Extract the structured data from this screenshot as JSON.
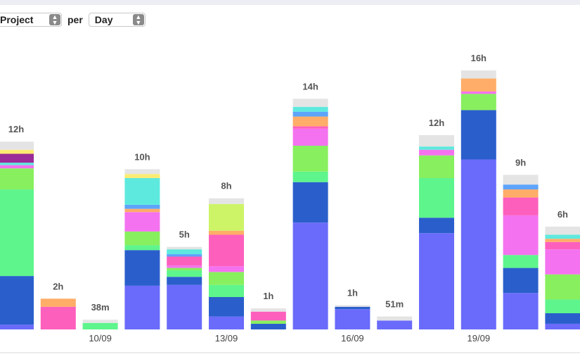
{
  "controls": {
    "group_by": "Project",
    "joiner": "per",
    "period": "Day"
  },
  "chart_data": {
    "type": "stacked-bar",
    "categories": [
      null,
      null,
      "10/09",
      null,
      null,
      "13/09",
      null,
      null,
      "16/09",
      null,
      null,
      "19/09",
      null,
      null
    ],
    "ylim": [
      0,
      20.35
    ],
    "series": [
      {
        "color": "#6a6bfb",
        "values": [
          0.3,
          null,
          null,
          2.7,
          2.75,
          0.8,
          null,
          6.6,
          1.25,
          0.55,
          5.95,
          10.5,
          2.25,
          0.35
        ]
      },
      {
        "color": "#2a5fcb",
        "values": [
          3.0,
          null,
          null,
          2.2,
          0.5,
          1.2,
          0.35,
          2.5,
          0.15,
          null,
          0.95,
          3.05,
          1.55,
          0.65
        ]
      },
      {
        "color": "#5ef58c",
        "values": [
          5.35,
          null,
          0.4,
          0.3,
          0.4,
          0.75,
          null,
          0.65,
          null,
          null,
          2.45,
          null,
          0.8,
          0.85
        ]
      },
      {
        "color": "#88ef5e",
        "values": [
          1.3,
          null,
          null,
          0.85,
          0.15,
          0.8,
          0.2,
          1.6,
          null,
          null,
          1.4,
          1.0,
          null,
          1.55
        ]
      },
      {
        "color": "#f472ef",
        "values": [
          0.2,
          null,
          null,
          1.2,
          0.15,
          0.35,
          null,
          1.05,
          null,
          null,
          0.35,
          0.15,
          2.45,
          1.55
        ]
      },
      {
        "color": "#fd5fbd",
        "values": [
          null,
          1.4,
          null,
          null,
          0.55,
          1.95,
          0.55,
          0.15,
          null,
          null,
          null,
          null,
          1.1,
          0.45
        ]
      },
      {
        "color": "#ffad68",
        "values": [
          null,
          0.5,
          null,
          0.2,
          null,
          0.25,
          null,
          0.6,
          null,
          null,
          null,
          0.8,
          0.5,
          0.2
        ]
      },
      {
        "color": "#5ea4fb",
        "values": [
          null,
          null,
          null,
          0.25,
          0.15,
          null,
          null,
          0.3,
          null,
          null,
          null,
          null,
          0.3,
          null
        ]
      },
      {
        "color": "#5ee9de",
        "values": [
          0.15,
          null,
          null,
          1.65,
          0.3,
          null,
          null,
          0.3,
          null,
          null,
          0.2,
          null,
          null,
          0.25
        ]
      },
      {
        "color": "#9b2b98",
        "values": [
          0.55,
          null,
          null,
          null,
          null,
          null,
          null,
          null,
          null,
          null,
          null,
          null,
          null,
          null
        ]
      },
      {
        "color": "#fbeb72",
        "values": [
          0.25,
          null,
          null,
          0.25,
          null,
          null,
          null,
          null,
          null,
          null,
          null,
          null,
          null,
          null
        ]
      },
      {
        "color": "#cdf466",
        "values": [
          null,
          null,
          null,
          null,
          null,
          1.65,
          null,
          null,
          null,
          null,
          null,
          null,
          null,
          null
        ]
      },
      {
        "color": "#e4e4e4",
        "values": [
          0.5,
          null,
          0.2,
          0.3,
          0.15,
          0.35,
          0.2,
          0.5,
          0.1,
          0.25,
          0.7,
          0.5,
          0.6,
          0.5
        ]
      }
    ],
    "totals": {
      "values": [
        12,
        2,
        0.633,
        10,
        5,
        8,
        1,
        14,
        1,
        0.85,
        12,
        16,
        9,
        6
      ],
      "value_labels": [
        "12h",
        "2h",
        "38m",
        "10h",
        "5h",
        "8h",
        "1h",
        "14h",
        "1h",
        "51m",
        "12h",
        "16h",
        "9h",
        "6h"
      ]
    }
  }
}
